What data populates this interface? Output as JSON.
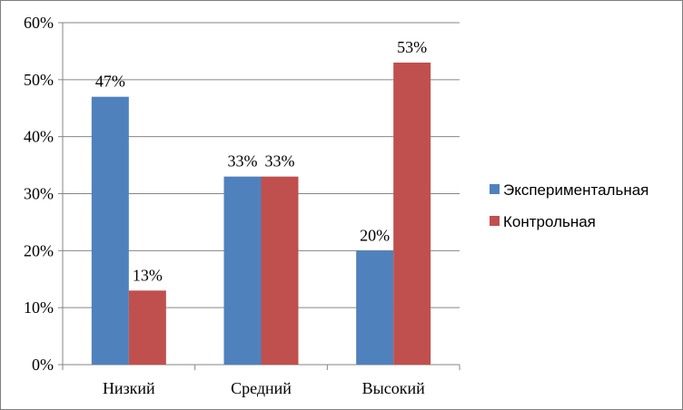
{
  "chart_data": {
    "type": "bar",
    "categories": [
      "Низкий",
      "Средний",
      "Высокий"
    ],
    "series": [
      {
        "name": "Экспериментальная",
        "color": "#4F81BD",
        "values": [
          47,
          33,
          20
        ],
        "labels": [
          "47%",
          "33%",
          "20%"
        ]
      },
      {
        "name": "Контрольная",
        "color": "#C0504D",
        "values": [
          13,
          33,
          53
        ],
        "labels": [
          "13%",
          "33%",
          "53%"
        ]
      }
    ],
    "yticks": [
      "0%",
      "10%",
      "20%",
      "30%",
      "40%",
      "50%",
      "60%"
    ],
    "ylim": [
      0,
      60
    ],
    "grid": true,
    "legend": "right"
  }
}
